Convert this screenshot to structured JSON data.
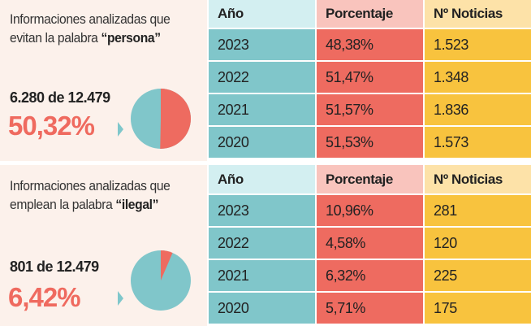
{
  "colors": {
    "teal": "#80c6ca",
    "red": "#ee6b60",
    "yellow": "#f8c33e"
  },
  "chart_data": [
    {
      "type": "table",
      "title_prefix": "Informaciones analizadas que evitan la palabra ",
      "title_keyword": "“persona”",
      "summary": {
        "count_text": "6.280 de 12.479",
        "percent_text": "50,32%",
        "percent": 50.32
      },
      "pie": {
        "type": "pie",
        "values": [
          50.32,
          49.68
        ]
      },
      "headers": [
        "Año",
        "Porcentaje",
        "Nº Noticias"
      ],
      "rows": [
        [
          "2023",
          "48,38%",
          "1.523"
        ],
        [
          "2022",
          "51,47%",
          "1.348"
        ],
        [
          "2021",
          "51,57%",
          "1.836"
        ],
        [
          "2020",
          "51,53%",
          "1.573"
        ]
      ]
    },
    {
      "type": "table",
      "title_prefix": "Informaciones analizadas que emplean la palabra ",
      "title_keyword": "“ilegal”",
      "summary": {
        "count_text": "801 de 12.479",
        "percent_text": "6,42%",
        "percent": 6.42
      },
      "pie": {
        "type": "pie",
        "values": [
          6.42,
          93.58
        ]
      },
      "headers": [
        "Año",
        "Porcentaje",
        "Nº Noticias"
      ],
      "rows": [
        [
          "2023",
          "10,96%",
          "281"
        ],
        [
          "2022",
          "4,58%",
          "120"
        ],
        [
          "2021",
          "6,32%",
          "225"
        ],
        [
          "2020",
          "5,71%",
          "175"
        ]
      ]
    }
  ]
}
